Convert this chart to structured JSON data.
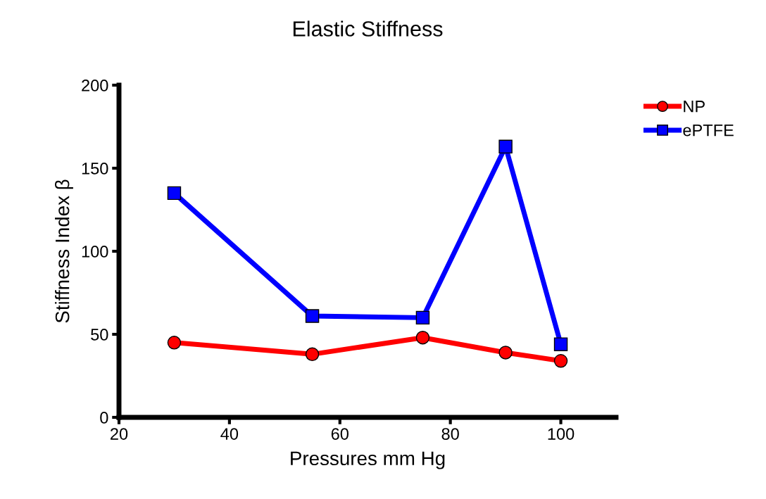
{
  "chart_data": {
    "type": "line",
    "title": "Elastic Stiffness",
    "xlabel": "Pressures mm Hg",
    "ylabel": "Stiffness Index β",
    "x": [
      30,
      55,
      75,
      90,
      100
    ],
    "series": [
      {
        "name": "NP",
        "color": "#ff0000",
        "marker": "circle",
        "values": [
          45,
          38,
          48,
          39,
          34
        ]
      },
      {
        "name": "ePTFE",
        "color": "#0000ff",
        "marker": "square",
        "values": [
          135,
          61,
          60,
          163,
          44
        ]
      }
    ],
    "xlim": [
      20,
      110
    ],
    "xticks": [
      20,
      40,
      60,
      80,
      100
    ],
    "ylim": [
      0,
      200
    ],
    "yticks": [
      0,
      50,
      100,
      150,
      200
    ],
    "grid": false,
    "legend": "top right",
    "line_style": "solid"
  }
}
